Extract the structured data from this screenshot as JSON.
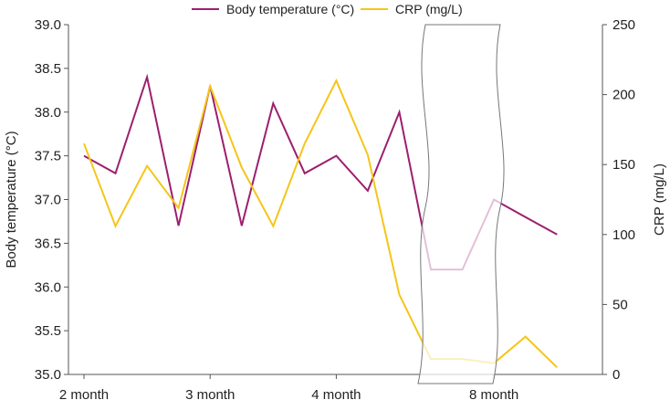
{
  "chart_data": {
    "type": "line",
    "title": "",
    "categories": [
      "2 month",
      "",
      "",
      "",
      "3 month",
      "",
      "",
      "",
      "4 month",
      "",
      "",
      "",
      "",
      "8 month",
      "",
      ""
    ],
    "x_tick_labels": [
      "2 month",
      "3 month",
      "4 month",
      "8 month"
    ],
    "axis_break": "between 4 month and 8 month",
    "series": [
      {
        "name": "Body temperature (°C)",
        "axis": "left",
        "color": "#9c1f6e",
        "values": [
          37.5,
          37.3,
          38.4,
          36.7,
          38.3,
          36.7,
          38.1,
          37.3,
          37.5,
          37.1,
          38.0,
          36.2,
          36.2,
          37.0,
          36.8,
          36.6
        ]
      },
      {
        "name": "CRP (mg/L)",
        "axis": "right",
        "color": "#f5c518",
        "values": [
          165,
          106,
          149,
          119,
          206,
          148,
          106,
          165,
          210,
          157,
          57,
          11,
          11,
          8,
          27,
          5
        ]
      }
    ],
    "y_left": {
      "label": "Body temperature (°C)",
      "ylim": [
        35.0,
        39.0
      ],
      "ticks": [
        "35.0",
        "35.5",
        "36.0",
        "36.5",
        "37.0",
        "37.5",
        "38.0",
        "38.5",
        "39.0"
      ]
    },
    "y_right": {
      "label": "CRP (mg/L)",
      "ylim": [
        0,
        250
      ],
      "ticks": [
        "0",
        "50",
        "100",
        "150",
        "200",
        "250"
      ]
    },
    "legend": {
      "position": "top-center",
      "items": [
        "Body temperature (°C)",
        "CRP (mg/L)"
      ]
    },
    "grid": false
  }
}
